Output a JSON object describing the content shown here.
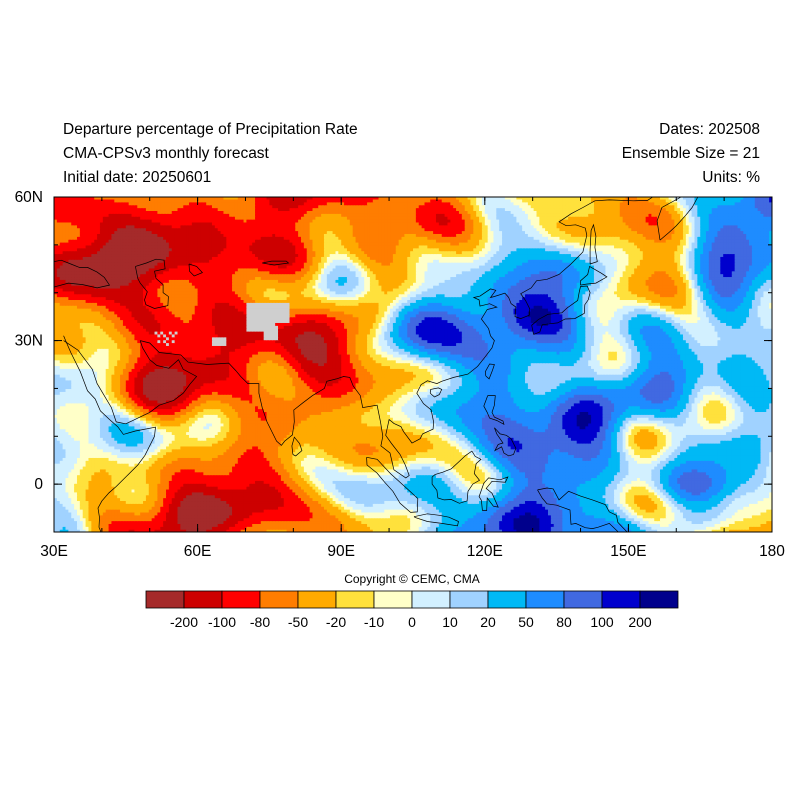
{
  "header": {
    "title_line1": "Departure percentage of Precipitation Rate",
    "title_line2": "CMA-CPSv3 monthly forecast",
    "title_line3": "Initial date: 20250601",
    "dates": "Dates: 202508",
    "ensemble": "Ensemble Size = 21",
    "units": "Units: %"
  },
  "map": {
    "lat_range": [
      -10,
      60
    ],
    "lon_range": [
      30,
      180
    ],
    "lat_tick_labels": [
      "60N",
      "30N",
      "0"
    ],
    "lat_ticks": [
      60,
      30,
      0
    ],
    "lon_tick_labels": [
      "30E",
      "60E",
      "90E",
      "120E",
      "150E",
      "180"
    ],
    "lon_ticks": [
      30,
      60,
      90,
      120,
      150,
      180
    ],
    "missing_color": "#cfcfcf",
    "coastline_color": "#000000"
  },
  "copyright": "Copyright © CEMC, CMA",
  "colorbar": {
    "colors": [
      "#a52a2a",
      "#cd0000",
      "#ff0000",
      "#ff7d00",
      "#ffaa00",
      "#ffe13c",
      "#ffffc8",
      "#d2f0ff",
      "#a0d2ff",
      "#00b9f5",
      "#1e8cff",
      "#4169e1",
      "#0000cd",
      "#00008c"
    ],
    "labels": [
      "-200",
      "-100",
      "-80",
      "-50",
      "-20",
      "-10",
      "0",
      "10",
      "20",
      "50",
      "80",
      "100",
      "200"
    ]
  }
}
